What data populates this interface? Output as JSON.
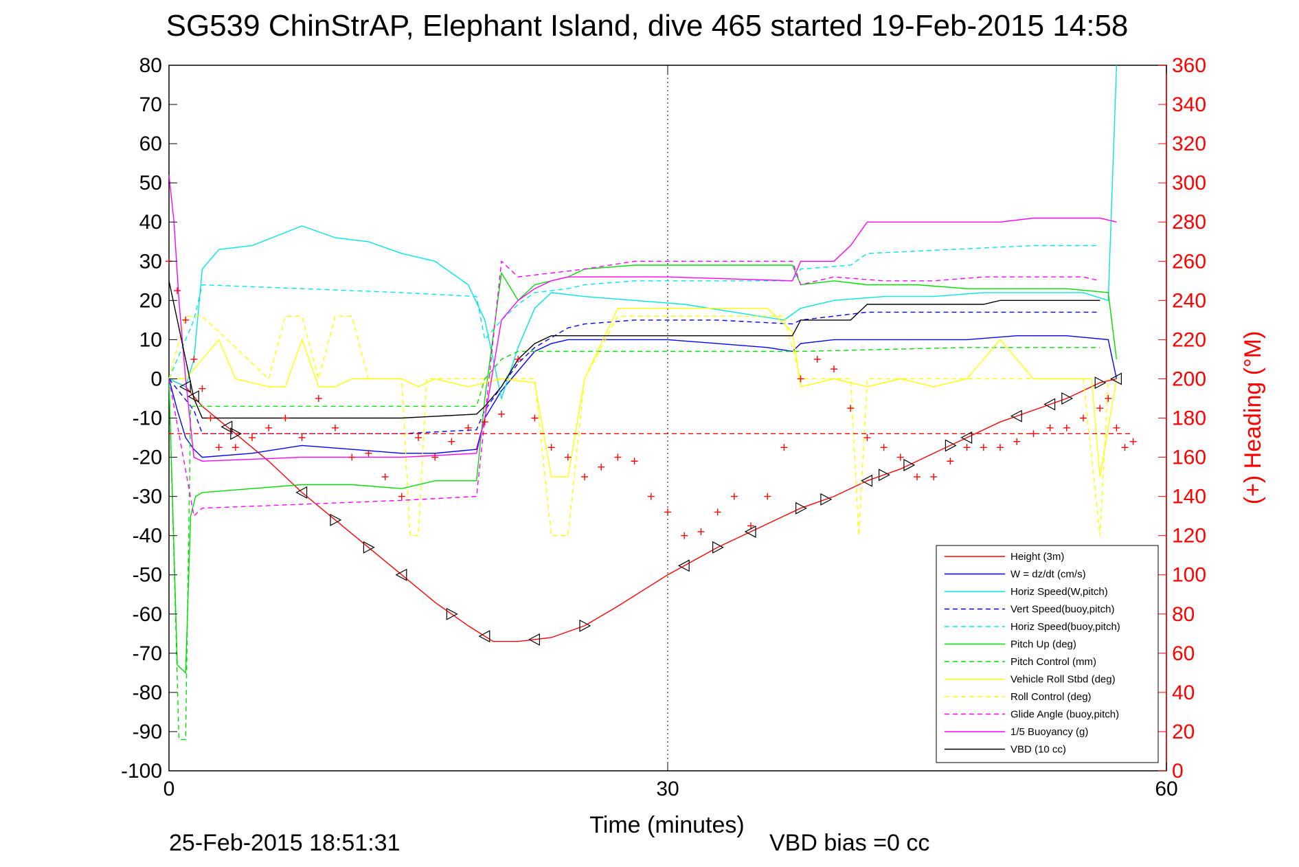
{
  "chart_data": {
    "type": "line",
    "title": "SG539 ChinStrAP, Elephant Island, dive 465 started 19-Feb-2015 14:58",
    "xlabel": "Time (minutes)",
    "ylabel_right": "(+) Heading (°M)",
    "footer_left": "25-Feb-2015 18:51:31",
    "footer_right": "VBD bias =0 cc",
    "xlim": [
      0,
      60
    ],
    "ylim_left": [
      -100,
      80
    ],
    "ylim_right": [
      0,
      360
    ],
    "x_ticks": [
      0,
      30,
      60
    ],
    "y_ticks_left": [
      80,
      70,
      60,
      50,
      40,
      30,
      20,
      10,
      0,
      -10,
      -20,
      -30,
      -40,
      -50,
      -60,
      -70,
      -80,
      -90,
      -100
    ],
    "y_ticks_right": [
      360,
      340,
      320,
      300,
      280,
      260,
      240,
      220,
      200,
      180,
      160,
      140,
      120,
      100,
      80,
      60,
      40,
      20,
      0
    ],
    "grid": "dotted at x=30",
    "legend_position": "bottom-right",
    "series": [
      {
        "name": "Height (3m)",
        "color": "#ff0000",
        "style": "solid",
        "x": [
          0,
          1,
          2,
          4,
          6,
          8,
          10,
          12,
          14,
          16,
          18,
          19.5,
          21,
          23,
          25,
          27,
          30,
          33,
          36,
          38,
          40,
          42,
          44,
          46,
          48,
          50,
          52,
          54,
          56,
          57
        ],
        "y": [
          0,
          -2,
          -7,
          -14,
          -21,
          -29,
          -36,
          -43,
          -50,
          -57,
          -63,
          -67,
          -67,
          -66,
          -63,
          -58,
          -50,
          -43,
          -37,
          -33,
          -30,
          -26,
          -23,
          -19,
          -15,
          -11,
          -8,
          -5,
          -1,
          0
        ]
      },
      {
        "name": "W = dz/dt (cm/s)",
        "color": "#0000ff",
        "style": "solid",
        "x": [
          0,
          0.5,
          1,
          1.5,
          2,
          5,
          8,
          11,
          14,
          16,
          18.5,
          19,
          20,
          21,
          22,
          23,
          24,
          27,
          30,
          33,
          36,
          37.5,
          38,
          40,
          42,
          45,
          48,
          51,
          54,
          56.5,
          57
        ],
        "y": [
          0,
          -8,
          -15,
          -18,
          -20,
          -19,
          -17,
          -18,
          -19,
          -19,
          -18,
          -10,
          -3,
          2,
          7,
          9,
          10,
          10,
          10,
          9,
          8,
          7,
          9,
          10,
          10,
          10,
          10,
          11,
          11,
          10,
          0
        ]
      },
      {
        "name": "Horiz Speed(W,pitch)",
        "color": "#00e5e5",
        "style": "solid",
        "x": [
          0,
          1,
          1.5,
          2,
          3,
          5,
          8,
          10,
          12,
          14,
          16,
          18,
          19,
          20,
          21,
          22,
          23,
          25,
          28,
          31,
          34,
          37,
          38,
          40,
          43,
          46,
          49,
          52,
          55,
          56.5,
          57
        ],
        "y": [
          0,
          -2,
          5,
          28,
          33,
          34,
          39,
          36,
          35,
          32,
          30,
          24,
          15,
          -5,
          8,
          18,
          22,
          21,
          20,
          19,
          17,
          15,
          18,
          20,
          21,
          21,
          22,
          22,
          22,
          20,
          80
        ]
      },
      {
        "name": "Vert Speed(buoy,pitch)",
        "color": "#0000ff",
        "style": "dashed",
        "x": [
          0,
          1.5,
          2,
          8,
          14,
          18.5,
          19,
          20,
          21,
          22,
          24,
          25,
          28,
          33,
          37.5,
          38,
          40,
          42,
          47,
          52,
          56
        ],
        "y": [
          0,
          -8,
          -14,
          -14,
          -14,
          -13,
          -8,
          -2,
          4,
          8,
          13,
          14,
          15,
          15,
          14,
          15,
          16,
          17,
          17,
          17,
          17
        ]
      },
      {
        "name": "Horiz Speed(buoy,pitch)",
        "color": "#00e5e5",
        "style": "dashed",
        "x": [
          0,
          1.5,
          2,
          8,
          14,
          18.5,
          19,
          20,
          21,
          22,
          24,
          25,
          28,
          33,
          37.5,
          38,
          41,
          42,
          47,
          52,
          56
        ],
        "y": [
          0,
          15,
          24,
          23,
          22,
          21,
          10,
          15,
          19,
          22,
          23,
          24,
          25,
          25,
          25,
          28,
          29,
          32,
          33,
          34,
          34
        ]
      },
      {
        "name": "Pitch Up (deg)",
        "color": "#00dd00",
        "style": "solid",
        "x": [
          0,
          0.5,
          1,
          1.3,
          1.6,
          2,
          5,
          8,
          11,
          14,
          16,
          18.5,
          19,
          20,
          21,
          22,
          24,
          25,
          28,
          31,
          34,
          37.5,
          38,
          40,
          42,
          45,
          48,
          51,
          54,
          56.5,
          57
        ],
        "y": [
          0,
          -73,
          -75,
          -35,
          -30,
          -29,
          -28,
          -27,
          -27,
          -28,
          -26,
          -26,
          -5,
          27,
          20,
          24,
          26,
          28,
          29,
          29,
          29,
          29,
          24,
          25,
          24,
          24,
          23,
          23,
          23,
          22,
          5
        ]
      },
      {
        "name": "Pitch Control (mm)",
        "color": "#00dd00",
        "style": "dashed",
        "x": [
          0,
          0.6,
          1,
          1.3,
          1.6,
          2,
          8,
          14,
          18.5,
          19,
          20,
          21,
          23,
          25,
          28,
          38,
          48,
          56
        ],
        "y": [
          0,
          -92,
          -92,
          -7,
          -7,
          -7,
          -7,
          -7,
          -7,
          0,
          5,
          7,
          7,
          7,
          7,
          7,
          8,
          8
        ]
      },
      {
        "name": "Vehicle Roll Stbd (deg)",
        "color": "#ffff00",
        "style": "solid",
        "x": [
          0,
          1,
          2,
          3,
          4,
          6,
          7,
          8,
          9,
          10,
          11,
          12,
          14,
          15,
          16,
          18,
          20,
          22,
          23,
          24,
          25,
          27,
          30,
          33,
          36,
          37.5,
          38,
          40,
          42,
          44,
          46,
          48,
          50,
          52,
          54,
          55.5,
          56,
          57
        ],
        "y": [
          0,
          0,
          5,
          10,
          0,
          -2,
          -2,
          10,
          -2,
          -2,
          0,
          0,
          0,
          -2,
          0,
          -2,
          0,
          -1,
          -25,
          -25,
          0,
          18,
          18,
          18,
          18,
          12,
          -2,
          0,
          -2,
          0,
          -2,
          0,
          10,
          0,
          0,
          0,
          -25,
          0
        ]
      },
      {
        "name": "Roll Control (deg)",
        "color": "#ffff00",
        "style": "dashed",
        "x": [
          0,
          1,
          2,
          6,
          7,
          8,
          9,
          10,
          11,
          12,
          14,
          14.5,
          15,
          15.5,
          16,
          19,
          22,
          23,
          24,
          25,
          27,
          37,
          38,
          41,
          41.5,
          42,
          45,
          48,
          52,
          55,
          56,
          56.5
        ],
        "y": [
          0,
          16,
          16,
          0,
          16,
          16,
          0,
          16,
          16,
          0,
          0,
          -40,
          -40,
          0,
          0,
          0,
          0,
          -40,
          -40,
          0,
          16,
          16,
          0,
          0,
          -40,
          0,
          0,
          0,
          0,
          0,
          -40,
          0
        ]
      },
      {
        "name": "Glide Angle (buoy,pitch)",
        "color": "#ff00ff",
        "style": "dashed",
        "x": [
          0,
          1.5,
          2,
          8,
          14,
          18.5,
          19,
          20,
          21,
          23,
          25,
          28,
          33,
          37.5,
          38,
          40,
          43,
          46,
          49,
          52,
          55,
          56
        ],
        "y": [
          0,
          -35,
          -33,
          -32,
          -31,
          -30,
          -10,
          30,
          26,
          27,
          28,
          30,
          30,
          30,
          24,
          26,
          25,
          25,
          26,
          26,
          26,
          25
        ]
      },
      {
        "name": "1/5 Buoyancy (g)",
        "color": "#ff00ff",
        "style": "solid",
        "x": [
          0,
          0.3,
          0.6,
          1,
          1.5,
          2,
          8,
          14,
          18.5,
          19,
          20,
          21,
          22,
          23,
          24,
          30,
          37.5,
          38,
          40,
          41,
          42,
          47,
          50,
          52,
          56,
          57
        ],
        "y": [
          52,
          40,
          20,
          0,
          -20,
          -21,
          -20,
          -20,
          -19,
          -10,
          15,
          20,
          23,
          25,
          26,
          26,
          25,
          30,
          30,
          34,
          40,
          40,
          40,
          41,
          41,
          40
        ]
      },
      {
        "name": "VBD (10 cc)",
        "color": "#000000",
        "style": "solid",
        "x": [
          0,
          0.5,
          1,
          1.5,
          2,
          8,
          14,
          18.5,
          19,
          20,
          21,
          22,
          23,
          30,
          37.5,
          38,
          40,
          41,
          42,
          47,
          49,
          50,
          56
        ],
        "y": [
          25,
          15,
          5,
          -5,
          -10,
          -10,
          -10,
          -9,
          -7,
          -2,
          5,
          9,
          11,
          11,
          11,
          15,
          15,
          15,
          19,
          19,
          19,
          20,
          20
        ]
      },
      {
        "name": "Heading (+)",
        "color": "#ff0000",
        "style": "plus",
        "x": [
          0,
          0.5,
          1,
          1.5,
          2,
          2.5,
          3,
          4,
          5,
          6,
          7,
          8,
          9,
          10,
          11,
          12,
          13,
          14,
          15,
          16,
          17,
          18,
          19,
          20,
          21,
          22,
          23,
          24,
          25,
          26,
          27,
          28,
          29,
          30,
          31,
          32,
          33,
          34,
          35,
          36,
          37,
          38,
          39,
          40,
          41,
          42,
          43,
          44,
          45,
          46,
          47,
          48,
          49,
          50,
          51,
          52,
          53,
          54,
          55,
          56,
          56.5,
          57,
          57.5,
          58
        ],
        "y": [
          260,
          245,
          230,
          210,
          195,
          180,
          165,
          165,
          170,
          175,
          180,
          170,
          190,
          175,
          160,
          162,
          150,
          140,
          170,
          160,
          168,
          175,
          178,
          182,
          210,
          180,
          165,
          160,
          150,
          155,
          160,
          158,
          140,
          132,
          120,
          122,
          132,
          140,
          125,
          140,
          165,
          200,
          210,
          205,
          185,
          170,
          165,
          160,
          150,
          150,
          158,
          165,
          165,
          165,
          168,
          172,
          175,
          175,
          180,
          185,
          190,
          175,
          165,
          168
        ]
      },
      {
        "name": "Mean heading (dashed)",
        "color": "#ff0000",
        "style": "dashed",
        "x": [
          0,
          58
        ],
        "y": [
          172,
          172
        ]
      }
    ],
    "markers": {
      "right_triangles_x": [
        4,
        10,
        12,
        17,
        25,
        33,
        38,
        39.5,
        43,
        44.5,
        47,
        54,
        56
      ],
      "left_triangles_x": [
        1,
        1.5,
        3.5,
        8,
        14,
        19,
        22,
        31,
        35,
        42,
        48,
        51,
        53,
        57
      ]
    },
    "legend": [
      {
        "label": "Height (3m)",
        "color": "#ff0000",
        "style": "solid"
      },
      {
        "label": "W = dz/dt (cm/s)",
        "color": "#0000ff",
        "style": "solid"
      },
      {
        "label": "Horiz Speed(W,pitch)",
        "color": "#00e5e5",
        "style": "solid"
      },
      {
        "label": "Vert Speed(buoy,pitch)",
        "color": "#0000ff",
        "style": "dashed"
      },
      {
        "label": "Horiz Speed(buoy,pitch)",
        "color": "#00e5e5",
        "style": "dashed"
      },
      {
        "label": "Pitch Up (deg)",
        "color": "#00dd00",
        "style": "solid"
      },
      {
        "label": "Pitch Control (mm)",
        "color": "#00dd00",
        "style": "dashed"
      },
      {
        "label": "Vehicle Roll Stbd (deg)",
        "color": "#ffff00",
        "style": "solid"
      },
      {
        "label": "Roll Control (deg)",
        "color": "#ffff00",
        "style": "dashed"
      },
      {
        "label": "Glide Angle (buoy,pitch)",
        "color": "#ff00ff",
        "style": "dashed"
      },
      {
        "label": "1/5 Buoyancy (g)",
        "color": "#ff00ff",
        "style": "solid"
      },
      {
        "label": "VBD (10 cc)",
        "color": "#000000",
        "style": "solid"
      }
    ]
  }
}
